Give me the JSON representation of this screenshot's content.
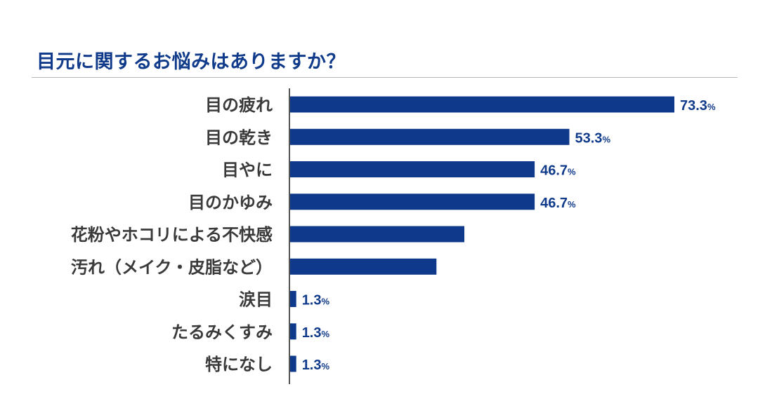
{
  "title": "目元に関するお悩みはありますか？",
  "colors": {
    "bar": "#0f3a8c",
    "title": "#103a8a",
    "label": "#3a3a3a",
    "axis": "#555555",
    "divider": "#b9b9b9"
  },
  "chart_data": {
    "type": "bar",
    "orientation": "horizontal",
    "title": "目元に関するお悩みはありますか？",
    "xlabel": "",
    "ylabel": "",
    "unit": "%",
    "xlim": [
      0,
      73.3
    ],
    "grid": false,
    "legend": "none",
    "categories": [
      "目の疲れ",
      "目の乾き",
      "目やに",
      "目のかゆみ",
      "花粉やホコリによる不快感",
      "汚れ（メイク・皮脂など）",
      "涙目",
      "たるみくすみ",
      "特になし"
    ],
    "values": [
      73.3,
      53.3,
      46.7,
      46.7,
      33.3,
      28.0,
      1.3,
      1.3,
      1.3
    ],
    "data_labels": [
      "73.3",
      "53.3",
      "46.7",
      "46.7",
      "",
      "",
      "1.3",
      "1.3",
      "1.3"
    ]
  }
}
